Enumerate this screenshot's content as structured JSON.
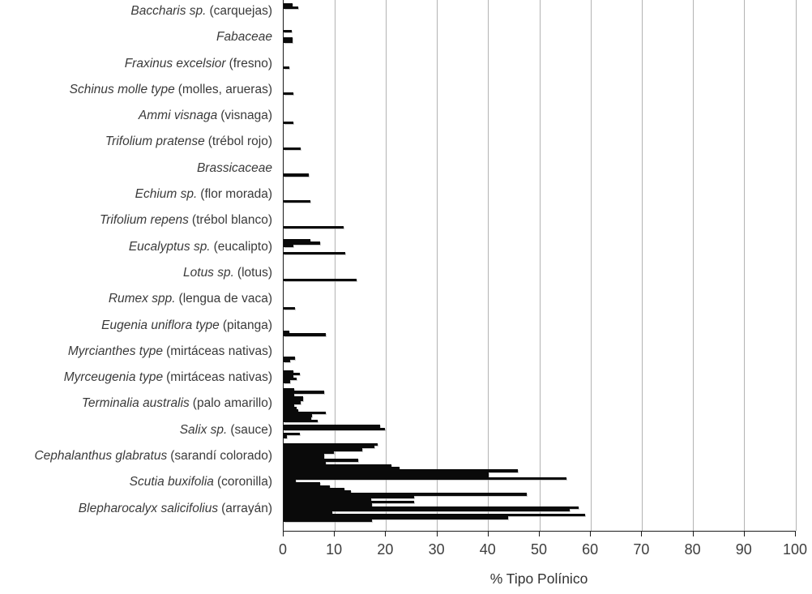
{
  "chart_data": {
    "type": "bar",
    "orientation": "horizontal",
    "title": "",
    "xlabel": "% Tipo Polínico",
    "ylabel": "",
    "xlim": [
      0,
      100
    ],
    "xticks": [
      0,
      10,
      20,
      30,
      40,
      50,
      60,
      70,
      80,
      90,
      100
    ],
    "grid": "vertical-gray",
    "legend": "none",
    "bars_per_category": 10,
    "note_units": "percent of pollen type per sample",
    "categories": [
      {
        "scientific": "Baccharis sp.",
        "common": "(carquejas)",
        "values": [
          0,
          0,
          1.7,
          2.9,
          0,
          0,
          0,
          0,
          0,
          0
        ]
      },
      {
        "scientific": "Fabaceae",
        "common": "",
        "values": [
          0,
          0,
          1.6,
          0,
          0,
          1.8,
          1.7,
          0,
          0,
          0
        ]
      },
      {
        "scientific": "Fraxinus excelsior",
        "common": "(fresno)",
        "values": [
          0,
          0,
          0,
          0,
          0,
          0,
          1.1,
          0,
          0,
          0
        ]
      },
      {
        "scientific": "Schinus molle type",
        "common": "(molles, arueras)",
        "values": [
          0,
          0,
          0,
          0,
          0,
          0,
          1.9,
          0,
          0,
          0
        ]
      },
      {
        "scientific": "Ammi visnaga",
        "common": "(visnaga)",
        "values": [
          0,
          0,
          0,
          0,
          0,
          0,
          0,
          1.9,
          0,
          0
        ]
      },
      {
        "scientific": "Trifolium pratense",
        "common": "(trébol rojo)",
        "values": [
          0,
          0,
          0,
          0,
          0,
          0,
          0,
          3.3,
          0,
          0
        ]
      },
      {
        "scientific": "Brassicaceae",
        "common": "",
        "values": [
          0,
          0,
          0,
          0,
          0,
          0,
          0,
          4.9,
          0,
          0
        ]
      },
      {
        "scientific": "Echium sp.",
        "common": "(flor morada)",
        "values": [
          0,
          0,
          0,
          0,
          0,
          0,
          0,
          5.2,
          0,
          0
        ]
      },
      {
        "scientific": "Trifolium repens",
        "common": "(trébol blanco)",
        "values": [
          0,
          0,
          0,
          0,
          0,
          0,
          0,
          11.7,
          0,
          0
        ]
      },
      {
        "scientific": "Eucalyptus sp.",
        "common": "(eucalipto)",
        "values": [
          0,
          0,
          5.3,
          7.1,
          1.9,
          0,
          0,
          12.1,
          0,
          0
        ]
      },
      {
        "scientific": "Lotus sp.",
        "common": "(lotus)",
        "values": [
          0,
          0,
          0,
          0,
          0,
          0,
          0,
          14.3,
          0,
          0
        ]
      },
      {
        "scientific": "Rumex spp.",
        "common": "(lengua de vaca)",
        "values": [
          0,
          0,
          0,
          0,
          0,
          0,
          0,
          0,
          2.2,
          0
        ]
      },
      {
        "scientific": "Eugenia uniflora type",
        "common": "(pitanga)",
        "values": [
          0,
          0,
          0,
          0,
          0,
          0,
          0,
          1.1,
          8.3,
          0
        ]
      },
      {
        "scientific": "Myrcianthes type",
        "common": "(mirtáceas nativas)",
        "values": [
          0,
          0,
          0,
          0,
          0,
          0,
          0,
          2.2,
          1.2,
          0
        ]
      },
      {
        "scientific": "Myrceugenia type",
        "common": "(mirtáceas nativas)",
        "values": [
          0,
          0,
          1.9,
          3.1,
          1.9,
          2.5,
          1.2,
          0,
          0,
          2.1
        ]
      },
      {
        "scientific": "Terminalia australis",
        "common": "(palo amarillo)",
        "values": [
          7.9,
          2.1,
          3.8,
          3.8,
          3.3,
          2.1,
          2.5,
          2.9,
          8.2,
          5.5
        ]
      },
      {
        "scientific": "Salix sp.",
        "common": "(sauce)",
        "values": [
          5.4,
          6.7,
          0,
          18.8,
          19.7,
          0,
          3.2,
          0.7,
          0,
          0
        ]
      },
      {
        "scientific": "Cephalanthus glabratus",
        "common": "(sarandí colorado)",
        "values": [
          18.4,
          17.7,
          15.3,
          9.8,
          7.9,
          7.9,
          14.5,
          8.3,
          21.1,
          22.6
        ]
      },
      {
        "scientific": "Scutia buxifolia",
        "common": "(coronilla)",
        "values": [
          45.8,
          40.0,
          40.0,
          55.3,
          2.4,
          7.1,
          9.0,
          11.9,
          13.2,
          47.4
        ]
      },
      {
        "scientific": "Blepharocalyx salicifolius",
        "common": "(arrayán)",
        "values": [
          25.5,
          17.1,
          25.5,
          17.3,
          57.6,
          55.9,
          9.5,
          58.9,
          43.9,
          17.2
        ]
      }
    ],
    "colors": {
      "bar": "#0a0a0a",
      "grid": "#b3b3b3",
      "axis": "#1a1a1a",
      "label_text": "#3a3a3a",
      "background": "#ffffff"
    }
  }
}
